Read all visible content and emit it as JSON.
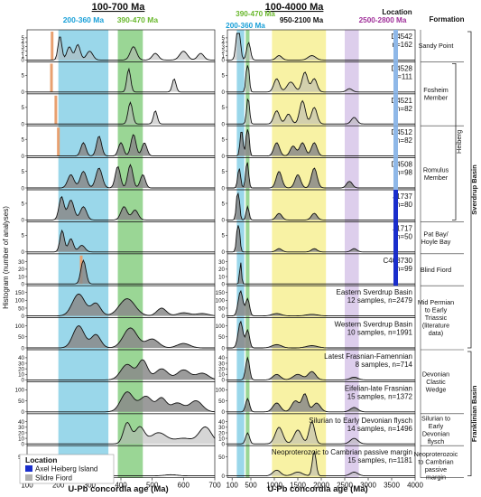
{
  "chart_data": {
    "type": "area",
    "panel_left": {
      "title": "100-700 Ma",
      "xlim": [
        100,
        700
      ],
      "xticks": [
        100,
        200,
        300,
        400,
        500,
        600,
        700
      ],
      "xlabel": "U-Pb concordia age (Ma)",
      "bands": [
        {
          "label": "200-360 Ma",
          "range": [
            200,
            360
          ],
          "color": "#8fd3e8"
        },
        {
          "label": "390-470 Ma",
          "range": [
            390,
            470
          ],
          "color": "#8fd18a"
        }
      ],
      "orange_markers": [
        {
          "row": 0,
          "x": 180
        },
        {
          "row": 1,
          "x": 178
        },
        {
          "row": 2,
          "x": 192
        },
        {
          "row": 3,
          "x": 200
        },
        {
          "row": 7,
          "x": 273
        }
      ]
    },
    "panel_right": {
      "title": "100-4000 Ma",
      "xlim": [
        0,
        4000
      ],
      "xticks": [
        100,
        500,
        1000,
        1500,
        2000,
        2500,
        3000,
        3500,
        4000
      ],
      "xlabel": "U-Pb concordia age (Ma)",
      "bands": [
        {
          "label": "200-360 Ma",
          "range": [
            200,
            360
          ],
          "color": "#8fd3e8"
        },
        {
          "label": "390-470 Ma",
          "range": [
            390,
            470
          ],
          "color": "#8fd18a"
        },
        {
          "label": "950-2100 Ma",
          "range": [
            950,
            2100
          ],
          "color": "#f7f19a"
        },
        {
          "label": "2500-2800 Ma",
          "range": [
            2500,
            2800
          ],
          "color": "#d9c9ea"
        }
      ]
    },
    "ylabel": "Histogram (number of analyses)",
    "rows": [
      {
        "label": "D4542",
        "n": "n=162",
        "yticks": [
          0,
          1,
          2,
          3,
          4,
          5
        ],
        "ymax": 6,
        "peaks_left": [
          [
            205,
            5.5,
            6
          ],
          [
            235,
            3,
            8
          ],
          [
            262,
            3.5,
            8
          ],
          [
            300,
            2,
            10
          ],
          [
            440,
            3,
            10
          ],
          [
            510,
            1.5,
            10
          ],
          [
            600,
            2,
            12
          ],
          [
            655,
            1.5,
            10
          ]
        ],
        "peaks_right": [
          [
            230,
            9,
            40
          ],
          [
            450,
            4,
            40
          ],
          [
            1100,
            1,
            60
          ],
          [
            1800,
            1,
            80
          ]
        ]
      },
      {
        "label": "D4528",
        "n": "n=111",
        "yticks": [
          0,
          5
        ],
        "ymax": 8,
        "peaks_left": [
          [
            425,
            7,
            6
          ],
          [
            570,
            4,
            6
          ]
        ],
        "peaks_right": [
          [
            430,
            10,
            30
          ],
          [
            1050,
            4,
            60
          ],
          [
            1350,
            3,
            80
          ],
          [
            1650,
            6,
            60
          ],
          [
            1850,
            4,
            60
          ],
          [
            2600,
            1,
            60
          ]
        ]
      },
      {
        "label": "D4521",
        "n": "n=82",
        "yticks": [
          0,
          5
        ],
        "ymax": 8,
        "peaks_left": [
          [
            430,
            6.5,
            7
          ],
          [
            510,
            4,
            6
          ]
        ],
        "peaks_right": [
          [
            440,
            8,
            30
          ],
          [
            1050,
            4,
            60
          ],
          [
            1300,
            3,
            60
          ],
          [
            1600,
            7,
            60
          ],
          [
            1850,
            5,
            60
          ],
          [
            2700,
            2,
            60
          ]
        ]
      },
      {
        "label": "D4512",
        "n": "n=82",
        "yticks": [
          0,
          5
        ],
        "ymax": 8,
        "peaks_left": [
          [
            280,
            4,
            8
          ],
          [
            330,
            6,
            8
          ],
          [
            400,
            4,
            8
          ],
          [
            440,
            6.5,
            8
          ],
          [
            475,
            4,
            8
          ]
        ],
        "peaks_right": [
          [
            300,
            8,
            30
          ],
          [
            430,
            10,
            30
          ],
          [
            1050,
            4,
            60
          ],
          [
            1400,
            3,
            60
          ],
          [
            1600,
            4,
            60
          ],
          [
            1850,
            4,
            60
          ]
        ]
      },
      {
        "label": "D4508",
        "n": "n=98",
        "yticks": [
          0,
          5
        ],
        "ymax": 8,
        "peaks_left": [
          [
            240,
            4,
            10
          ],
          [
            280,
            5,
            10
          ],
          [
            330,
            6,
            10
          ],
          [
            390,
            6.5,
            8
          ],
          [
            430,
            7,
            8
          ],
          [
            470,
            4,
            8
          ]
        ],
        "peaks_right": [
          [
            250,
            6,
            30
          ],
          [
            420,
            8,
            30
          ],
          [
            1100,
            5,
            60
          ],
          [
            1500,
            4,
            60
          ],
          [
            1850,
            6,
            60
          ],
          [
            2600,
            2,
            60
          ]
        ]
      },
      {
        "label": "J1737",
        "n": "n=80",
        "yticks": [
          0,
          5
        ],
        "ymax": 8,
        "peaks_left": [
          [
            210,
            7,
            8
          ],
          [
            240,
            6,
            10
          ],
          [
            280,
            4,
            10
          ],
          [
            410,
            4,
            10
          ],
          [
            445,
            3,
            10
          ]
        ],
        "peaks_right": [
          [
            225,
            10,
            30
          ],
          [
            430,
            4,
            30
          ],
          [
            1100,
            2,
            60
          ],
          [
            1850,
            2,
            60
          ]
        ]
      },
      {
        "label": "J1717",
        "n": "n=50",
        "yticks": [
          0,
          5
        ],
        "ymax": 8,
        "peaks_left": [
          [
            212,
            6.5,
            7
          ],
          [
            240,
            4,
            8
          ],
          [
            275,
            2,
            10
          ]
        ],
        "peaks_right": [
          [
            230,
            10,
            30
          ],
          [
            1100,
            1,
            60
          ],
          [
            1850,
            1,
            60
          ],
          [
            2700,
            1,
            60
          ]
        ]
      },
      {
        "label": "C403730",
        "n": "n=99",
        "yticks": [
          0,
          10,
          20,
          30
        ],
        "ymax": 36,
        "peaks_left": [
          [
            280,
            32,
            8
          ]
        ],
        "peaks_right": [
          [
            280,
            30,
            20
          ]
        ]
      },
      {
        "label": "Eastern Sverdrup Basin",
        "n": "12 samples, n=2479",
        "yticks": [
          0,
          50,
          100,
          150
        ],
        "ymax": 170,
        "peaks_left": [
          [
            265,
            140,
            20
          ],
          [
            320,
            80,
            15
          ],
          [
            420,
            110,
            25
          ],
          [
            530,
            50,
            15
          ],
          [
            600,
            20,
            20
          ],
          [
            660,
            15,
            20
          ]
        ],
        "peaks_right": [
          [
            280,
            160,
            50
          ],
          [
            430,
            110,
            40
          ],
          [
            1050,
            15,
            100
          ],
          [
            1800,
            10,
            120
          ]
        ]
      },
      {
        "label": "Western Sverdrup Basin",
        "n": "10 samples, n=1991",
        "yticks": [
          0,
          50,
          100
        ],
        "ymax": 120,
        "peaks_left": [
          [
            265,
            100,
            18
          ],
          [
            320,
            60,
            15
          ],
          [
            430,
            90,
            22
          ],
          [
            500,
            40,
            20
          ],
          [
            600,
            20,
            20
          ]
        ],
        "peaks_right": [
          [
            280,
            120,
            50
          ],
          [
            430,
            80,
            40
          ],
          [
            1050,
            15,
            100
          ],
          [
            1800,
            10,
            120
          ]
        ]
      },
      {
        "label": "Latest Frasnian-Famennian",
        "n": "8 samples, n=714",
        "yticks": [
          0,
          10,
          20,
          30,
          40
        ],
        "ymax": 48,
        "peaks_left": [
          [
            420,
            28,
            20
          ],
          [
            470,
            35,
            15
          ],
          [
            530,
            20,
            20
          ],
          [
            600,
            18,
            20
          ],
          [
            660,
            12,
            20
          ]
        ],
        "peaks_right": [
          [
            430,
            40,
            40
          ],
          [
            1050,
            10,
            80
          ],
          [
            1500,
            10,
            100
          ],
          [
            1800,
            15,
            80
          ],
          [
            2700,
            5,
            80
          ]
        ]
      },
      {
        "label": "Eifelian-late Frasnian",
        "n": "15 samples, n=1372",
        "yticks": [
          0,
          50,
          100
        ],
        "ymax": 120,
        "peaks_left": [
          [
            420,
            90,
            20
          ],
          [
            480,
            70,
            20
          ],
          [
            530,
            60,
            15
          ],
          [
            580,
            40,
            20
          ],
          [
            640,
            50,
            20
          ]
        ],
        "peaks_right": [
          [
            430,
            60,
            40
          ],
          [
            1050,
            40,
            80
          ],
          [
            1450,
            50,
            80
          ],
          [
            1650,
            80,
            60
          ],
          [
            1900,
            40,
            80
          ],
          [
            2700,
            20,
            80
          ]
        ]
      },
      {
        "label": "Silurian to Early Devonian flysch",
        "n": "14 samples, n=1496",
        "yticks": [
          0,
          10,
          20,
          30,
          40
        ],
        "ymax": 48,
        "peaks_left": [
          [
            420,
            38,
            12
          ],
          [
            460,
            30,
            15
          ],
          [
            520,
            20,
            25
          ],
          [
            600,
            10,
            30
          ],
          [
            670,
            30,
            20
          ]
        ],
        "peaks_right": [
          [
            430,
            20,
            40
          ],
          [
            1100,
            30,
            80
          ],
          [
            1500,
            25,
            80
          ],
          [
            1800,
            40,
            60
          ],
          [
            2700,
            10,
            80
          ]
        ]
      },
      {
        "label": "Neoproterozoic to Cambrian passive margin",
        "n": "15 samples, n=1181",
        "yticks": [
          0,
          50
        ],
        "ymax": 70,
        "peaks_left": [
          [
            560,
            3,
            20
          ]
        ],
        "peaks_right": [
          [
            1050,
            15,
            80
          ],
          [
            1500,
            10,
            100
          ],
          [
            1850,
            65,
            40
          ],
          [
            2700,
            10,
            80
          ]
        ]
      }
    ],
    "location_colors": {
      "heiberg": "#1a2ecc",
      "slidre": "#8fb8e8"
    },
    "formations": [
      {
        "label": "Sandy Point",
        "rows": [
          0,
          0
        ]
      },
      {
        "label": "Fosheim Member",
        "rows": [
          1,
          2
        ]
      },
      {
        "label": "Romulus Member",
        "rows": [
          3,
          5
        ]
      },
      {
        "label": "Pat Bay/ Hoyle Bay",
        "rows": [
          6,
          6
        ]
      },
      {
        "label": "Blind Fiord",
        "rows": [
          7,
          7
        ]
      },
      {
        "label": "Mid Permian to Early Triassic (literature data)",
        "rows": [
          8,
          9
        ]
      },
      {
        "label": "Devonian Clastic Wedge",
        "rows": [
          10,
          11
        ]
      },
      {
        "label": "Silurian to Early Devonian flysch",
        "rows": [
          12,
          12
        ]
      },
      {
        "label": "Neoproterozoic to Cambrian passive margin",
        "rows": [
          13,
          13
        ]
      }
    ],
    "groups": [
      {
        "label": "Heiberg",
        "rows": [
          1,
          5
        ]
      },
      {
        "label": "Sverdrup Basin",
        "rows": [
          0,
          9
        ]
      },
      {
        "label": "Franklinian Basin",
        "rows": [
          10,
          13
        ]
      }
    ],
    "header_location": "Location",
    "header_formation": "Formation",
    "legend": {
      "title": "Location",
      "items": [
        {
          "label": "Axel Heiberg Island",
          "color": "#1a2ecc"
        },
        {
          "label": "Slidre Fiord",
          "color": "#b0b0b0"
        }
      ]
    }
  }
}
